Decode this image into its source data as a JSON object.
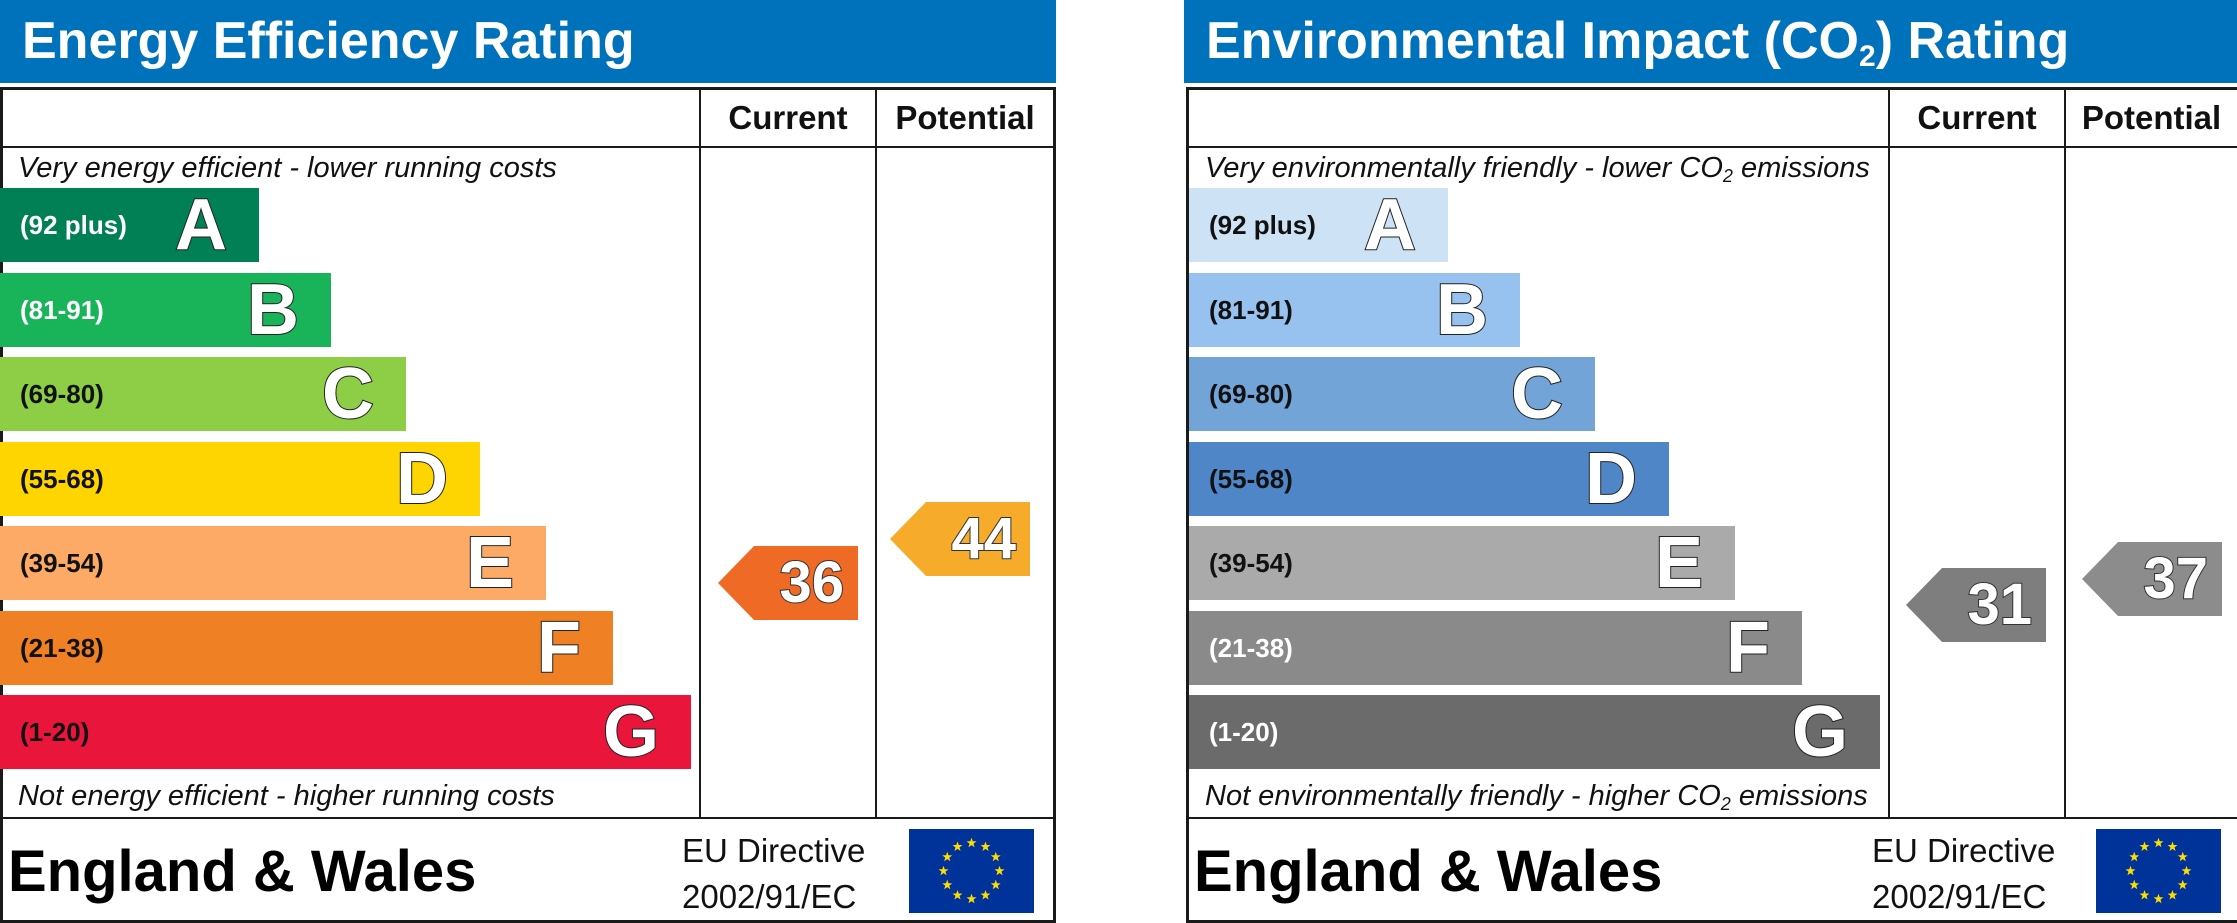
{
  "chart_data": [
    {
      "type": "bar",
      "title": "Energy Efficiency Rating",
      "column_headers": [
        "Current",
        "Potential"
      ],
      "top_note": "Very energy efficient - lower running costs",
      "bottom_note": "Not energy efficient - higher running costs",
      "bands": [
        {
          "letter": "A",
          "range": "(92 plus)",
          "color": "#008054",
          "text_color": "#ffffff"
        },
        {
          "letter": "B",
          "range": "(81-91)",
          "color": "#19b459",
          "text_color": "#ffffff"
        },
        {
          "letter": "C",
          "range": "(69-80)",
          "color": "#8dce46",
          "text_color": "#111111"
        },
        {
          "letter": "D",
          "range": "(55-68)",
          "color": "#ffd500",
          "text_color": "#111111"
        },
        {
          "letter": "E",
          "range": "(39-54)",
          "color": "#fcaa65",
          "text_color": "#111111"
        },
        {
          "letter": "F",
          "range": "(21-38)",
          "color": "#ef8023",
          "text_color": "#111111"
        },
        {
          "letter": "G",
          "range": "(1-20)",
          "color": "#e9153b",
          "text_color": "#111111"
        }
      ],
      "current": {
        "value": 36,
        "band": "F",
        "color": "#ee6a25"
      },
      "potential": {
        "value": 44,
        "band": "E",
        "color": "#f6ab2a"
      },
      "footer": {
        "region": "England & Wales",
        "directive_line1": "EU Directive",
        "directive_line2": "2002/91/EC"
      }
    },
    {
      "type": "bar",
      "title_main": "Environmental Impact (CO",
      "title_sub": "2",
      "title_end": ") Rating",
      "column_headers": [
        "Current",
        "Potential"
      ],
      "top_note_main": "Very environmentally friendly - lower CO",
      "top_note_sub": "2",
      "top_note_end": " emissions",
      "bottom_note_main": "Not environmentally friendly - higher CO",
      "bottom_note_sub": "2",
      "bottom_note_end": " emissions",
      "bands": [
        {
          "letter": "A",
          "range": "(92 plus)",
          "color": "#cde3f5",
          "text_color": "#111111"
        },
        {
          "letter": "B",
          "range": "(81-91)",
          "color": "#97c1ee",
          "text_color": "#111111"
        },
        {
          "letter": "C",
          "range": "(69-80)",
          "color": "#72a4d8",
          "text_color": "#111111"
        },
        {
          "letter": "D",
          "range": "(55-68)",
          "color": "#4f86c7",
          "text_color": "#111111"
        },
        {
          "letter": "E",
          "range": "(39-54)",
          "color": "#aaaaaa",
          "text_color": "#111111"
        },
        {
          "letter": "F",
          "range": "(21-38)",
          "color": "#8a8a8a",
          "text_color": "#ffffff"
        },
        {
          "letter": "G",
          "range": "(1-20)",
          "color": "#6b6b6b",
          "text_color": "#ffffff"
        }
      ],
      "current": {
        "value": 31,
        "band": "F",
        "color": "#7e7e7e"
      },
      "potential": {
        "value": 37,
        "band": "F",
        "color": "#8c8c8c"
      },
      "footer": {
        "region": "England & Wales",
        "directive_line1": "EU Directive",
        "directive_line2": "2002/91/EC"
      }
    }
  ]
}
